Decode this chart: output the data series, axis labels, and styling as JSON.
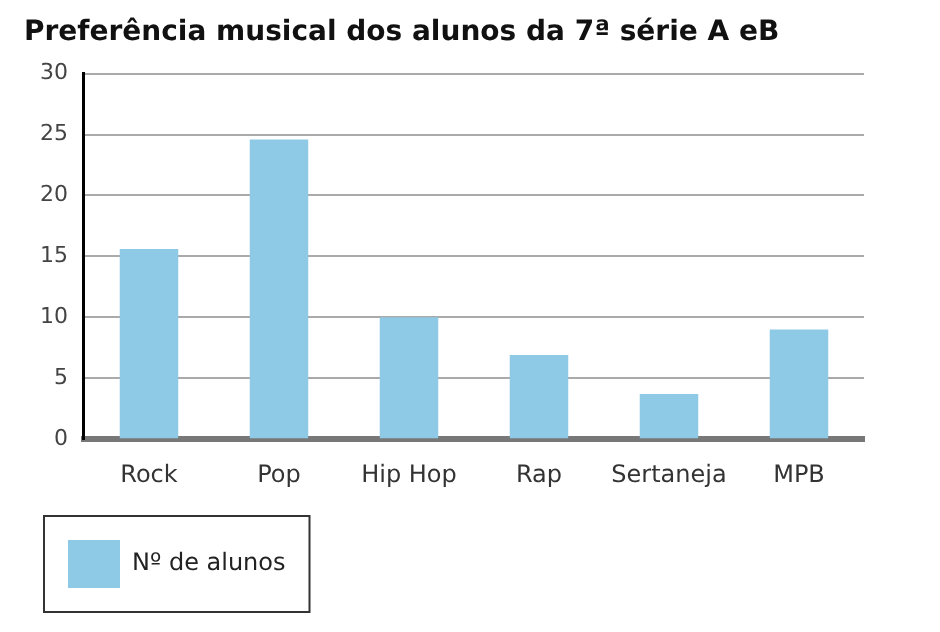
{
  "chart_data": {
    "type": "bar",
    "title": "Preferência musical dos alunos da 7ª série A eB",
    "categories": [
      "Rock",
      "Pop",
      "Hip Hop",
      "Rap",
      "Sertaneja",
      "MPB"
    ],
    "series": [
      {
        "name": "Nº de alunos",
        "color": "#8ec9e6",
        "values": [
          15.6,
          24.6,
          10,
          6.9,
          3.7,
          9
        ]
      }
    ],
    "ylim": [
      0,
      30
    ],
    "yticks": [
      0,
      5,
      10,
      15,
      20,
      25,
      30
    ],
    "grid": "y",
    "legend": "bottom left"
  }
}
